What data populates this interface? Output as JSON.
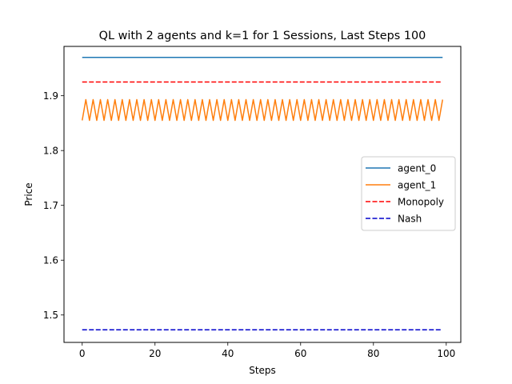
{
  "chart_data": {
    "type": "line",
    "title": "QL with 2 agents and k=1 for 1 Sessions, Last Steps 100",
    "xlabel": "Steps",
    "ylabel": "Price",
    "xlim": [
      -5,
      104
    ],
    "ylim": [
      1.45,
      1.99
    ],
    "xticks": [
      0,
      20,
      40,
      60,
      80,
      100
    ],
    "yticks": [
      1.5,
      1.6,
      1.7,
      1.8,
      1.9
    ],
    "xtick_labels": [
      "0",
      "20",
      "40",
      "60",
      "80",
      "100"
    ],
    "ytick_labels": [
      "1.5",
      "1.6",
      "1.7",
      "1.8",
      "1.9"
    ],
    "grid": false,
    "legend_position": "center-right",
    "series": [
      {
        "name": "agent_0",
        "style": "solid",
        "color": "#1f77b4",
        "constant": 1.97,
        "x_range": [
          0,
          99
        ]
      },
      {
        "name": "agent_1",
        "style": "solid",
        "color": "#ff7f0e",
        "oscillation": {
          "low": 1.855,
          "high": 1.893,
          "high_on": "odd"
        },
        "x_range": [
          0,
          99
        ]
      },
      {
        "name": "Monopoly",
        "style": "dashed",
        "color": "#ff0000",
        "constant": 1.925,
        "x_range": [
          0,
          99
        ]
      },
      {
        "name": "Nash",
        "style": "dashed",
        "color": "#0000cc",
        "constant": 1.473,
        "x_range": [
          0,
          99
        ]
      }
    ]
  }
}
